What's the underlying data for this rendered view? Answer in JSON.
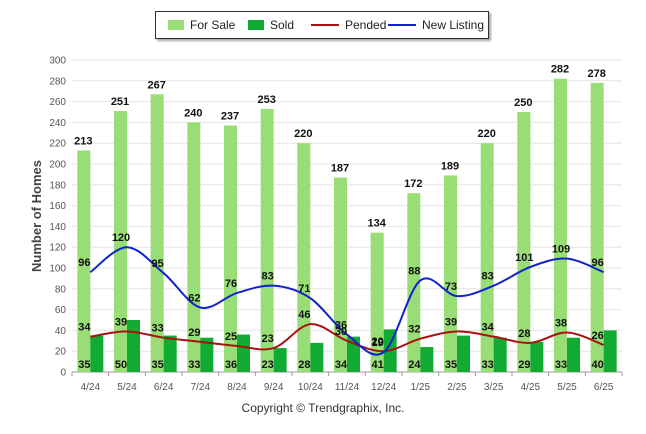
{
  "legend": {
    "for_sale": "For Sale",
    "sold": "Sold",
    "pended": "Pended",
    "new_listing": "New Listing"
  },
  "footer": "Copyright © Trendgraphix, Inc.",
  "chart_data": {
    "type": "bar",
    "ylabel": "Number of Homes",
    "xlabel": "",
    "ylim": [
      0,
      300
    ],
    "yticks": [
      0,
      20,
      40,
      60,
      80,
      100,
      120,
      140,
      160,
      180,
      200,
      220,
      240,
      260,
      280,
      300
    ],
    "grid": true,
    "legend_position": "top-center",
    "categories": [
      "4/24",
      "5/24",
      "6/24",
      "7/24",
      "8/24",
      "9/24",
      "10/24",
      "11/24",
      "12/24",
      "1/25",
      "2/25",
      "3/25",
      "4/25",
      "5/25",
      "6/25"
    ],
    "series": [
      {
        "name": "For Sale",
        "kind": "bar",
        "color": "#99dd77",
        "values": [
          213,
          251,
          267,
          240,
          237,
          253,
          220,
          187,
          134,
          172,
          189,
          220,
          250,
          282,
          278
        ]
      },
      {
        "name": "Sold",
        "kind": "bar",
        "color": "#11aa33",
        "values": [
          35,
          50,
          35,
          33,
          36,
          23,
          28,
          34,
          41,
          24,
          35,
          33,
          29,
          33,
          40
        ]
      },
      {
        "name": "Pended",
        "kind": "line",
        "color": "#aa1111",
        "values": [
          34,
          39,
          33,
          29,
          25,
          23,
          46,
          30,
          20,
          32,
          39,
          34,
          28,
          38,
          26
        ]
      },
      {
        "name": "New Listing",
        "kind": "line",
        "color": "#1122cc",
        "values": [
          96,
          120,
          95,
          62,
          76,
          83,
          71,
          36,
          19,
          88,
          73,
          83,
          101,
          109,
          96
        ]
      }
    ]
  }
}
